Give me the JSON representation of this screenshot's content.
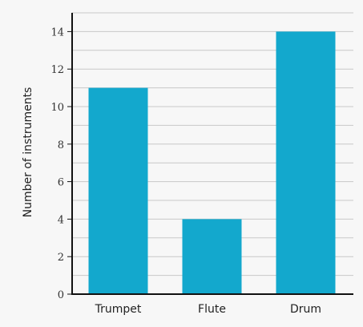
{
  "chart_data": {
    "type": "bar",
    "title": "",
    "xlabel": "",
    "ylabel": "Number of instruments",
    "categories": [
      "Trumpet",
      "Flute",
      "Drum"
    ],
    "values": [
      11,
      4,
      14
    ],
    "ylim": [
      0,
      15
    ],
    "yticks": [
      0,
      2,
      4,
      6,
      8,
      10,
      12,
      14
    ],
    "grid_step": 1,
    "grid": true,
    "colors": {
      "bar": "#13a8cd",
      "grid": "#c8c8c8",
      "axis": "#111111",
      "background": "#f7f7f7"
    }
  }
}
